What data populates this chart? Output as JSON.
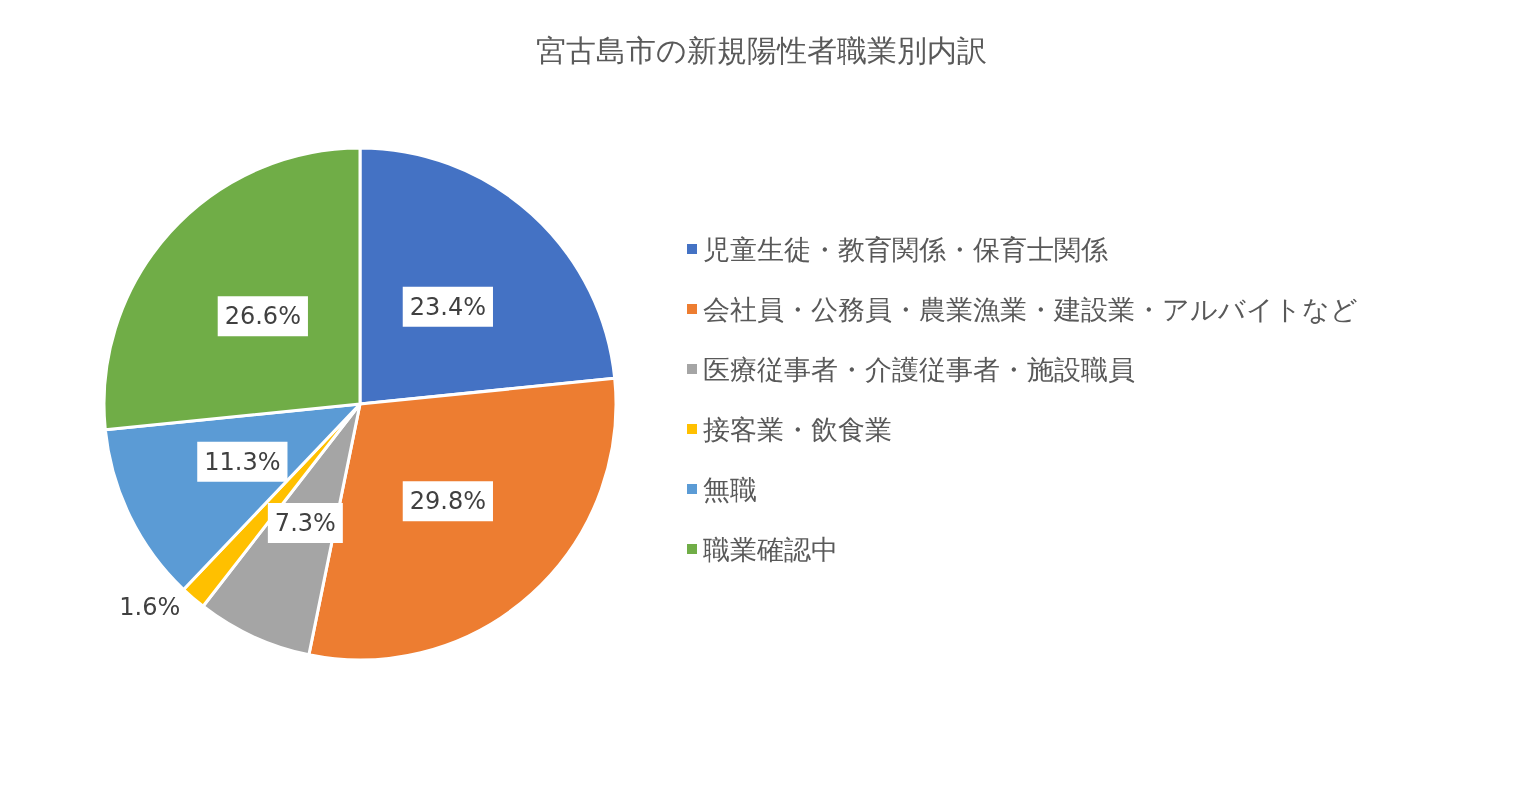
{
  "chart_data": {
    "type": "pie",
    "title": "宮古島市の新規陽性者職業別内訳",
    "categories": [
      "児童生徒・教育関係・保育士関係",
      "会社員・公務員・農業漁業・建設業・アルバイトなど",
      "医療従事者・介護従事者・施設職員",
      "接客業・飲食業",
      "無職",
      "職業確認中"
    ],
    "values": [
      23.4,
      29.8,
      7.3,
      1.6,
      11.3,
      26.6
    ],
    "colors": [
      "#4472c4",
      "#ed7d31",
      "#a5a5a5",
      "#ffc000",
      "#5b9bd5",
      "#70ad47"
    ],
    "value_labels": [
      "23.4%",
      "29.8%",
      "7.3%",
      "1.6%",
      "11.3%",
      "26.6%"
    ],
    "legend": "right"
  }
}
